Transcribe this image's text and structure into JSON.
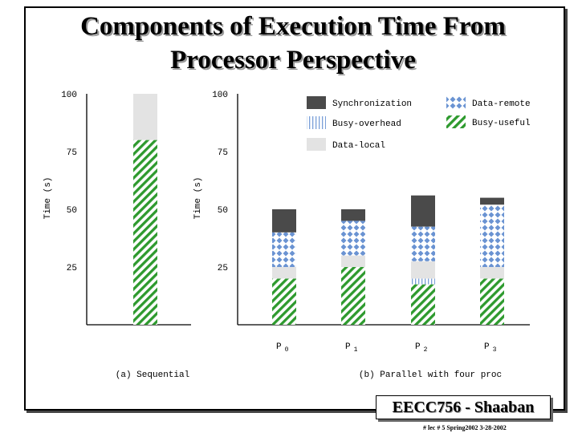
{
  "slide": {
    "title_line1": "Components of Execution Time From",
    "title_line2": "Processor Perspective",
    "badge": "EECC756 - Shaaban",
    "footer": "#  lec # 5   Spring2002  3-28-2002"
  },
  "colors": {
    "synchronization": "#4a4a4a",
    "data_remote": "#6a93d2",
    "busy_overhead": "#7a9fd8",
    "busy_useful": "#2e9a2e",
    "data_local": "#e3e3e3"
  },
  "legend": [
    {
      "key": "synchronization",
      "label": "Synchronization"
    },
    {
      "key": "data_remote",
      "label": "Data-remote"
    },
    {
      "key": "busy_overhead",
      "label": "Busy-overhead"
    },
    {
      "key": "busy_useful",
      "label": "Busy-useful"
    },
    {
      "key": "data_local",
      "label": "Data-local"
    }
  ],
  "chart_data": [
    {
      "type": "bar",
      "stacked": true,
      "caption": "(a) Sequential",
      "ylabel": "Time (s)",
      "ylim": [
        0,
        100
      ],
      "yticks": [
        "25",
        "50",
        "75",
        "100"
      ],
      "categories": [
        ""
      ],
      "series": [
        {
          "name": "Busy-useful",
          "key": "busy_useful",
          "values": [
            80
          ]
        },
        {
          "name": "Data-local",
          "key": "data_local",
          "values": [
            20
          ]
        }
      ]
    },
    {
      "type": "bar",
      "stacked": true,
      "caption": "(b) Parallel with four proc",
      "ylabel": "Time (s)",
      "ylim": [
        0,
        100
      ],
      "yticks": [
        "25",
        "50",
        "75",
        "100"
      ],
      "categories": [
        {
          "base": "P",
          "sub": "0"
        },
        {
          "base": "P",
          "sub": "1"
        },
        {
          "base": "P",
          "sub": "2"
        },
        {
          "base": "P",
          "sub": "3"
        }
      ],
      "series": [
        {
          "name": "Busy-useful",
          "key": "busy_useful",
          "values": [
            20,
            25,
            17.5,
            20
          ]
        },
        {
          "name": "Busy-overhead",
          "key": "busy_overhead",
          "values": [
            0,
            0,
            2.5,
            0
          ]
        },
        {
          "name": "Data-local",
          "key": "data_local",
          "values": [
            5,
            5,
            7.5,
            5
          ]
        },
        {
          "name": "Data-remote",
          "key": "data_remote",
          "values": [
            15,
            15,
            15,
            27
          ]
        },
        {
          "name": "Synchronization",
          "key": "synchronization",
          "values": [
            10,
            5,
            13.5,
            3
          ]
        }
      ]
    }
  ]
}
